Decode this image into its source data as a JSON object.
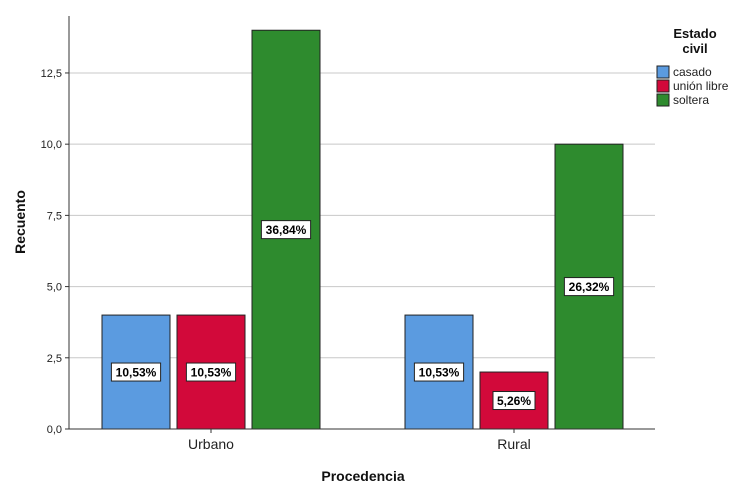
{
  "chart_data": {
    "type": "bar",
    "title": "",
    "xlabel": "Procedencia",
    "ylabel": "Recuento",
    "categories": [
      "Urbano",
      "Rural"
    ],
    "ylim": [
      0,
      14.5
    ],
    "yticks": [
      "0,0",
      "2,5",
      "5,0",
      "7,5",
      "10,0",
      "12,5"
    ],
    "ytick_values": [
      0,
      2.5,
      5,
      7.5,
      10,
      12.5
    ],
    "grid": true,
    "legend": {
      "title_line1": "Estado",
      "title_line2": "civil",
      "position": "top-right"
    },
    "series": [
      {
        "name": "casado",
        "color": "#5b9be0",
        "values": [
          4,
          4
        ],
        "labels": [
          "10,53%",
          "10,53%"
        ]
      },
      {
        "name": "unión libre",
        "color": "#d2093a",
        "values": [
          4,
          2
        ],
        "labels": [
          "10,53%",
          "5,26%"
        ]
      },
      {
        "name": "soltera",
        "color": "#2e8b2e",
        "values": [
          14,
          10
        ],
        "labels": [
          "36,84%",
          "26,32%"
        ]
      }
    ]
  }
}
